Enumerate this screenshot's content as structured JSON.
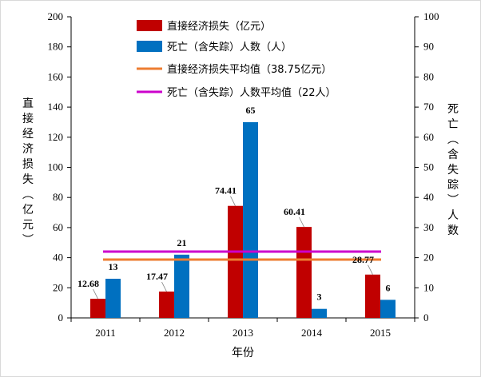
{
  "chart_data": {
    "type": "bar",
    "categories": [
      "2011",
      "2012",
      "2013",
      "2014",
      "2015"
    ],
    "xlabel": "年份",
    "ylabel_left": "直接经济损失（亿元）",
    "ylabel_right": "死亡（含失踪）人数",
    "ylim_left": [
      0,
      200
    ],
    "yticks_left": [
      "0",
      "20",
      "40",
      "60",
      "80",
      "100",
      "120",
      "140",
      "160",
      "180",
      "200"
    ],
    "ylim_right": [
      0,
      100
    ],
    "yticks_right": [
      "0",
      "10",
      "20",
      "30",
      "40",
      "50",
      "60",
      "70",
      "80",
      "90",
      "100"
    ],
    "grid": false,
    "legend_position": "top-center",
    "series": [
      {
        "name": "直接经济损失（亿元）",
        "axis": "left",
        "color": "#C00000",
        "values": [
          12.68,
          17.47,
          74.41,
          60.41,
          28.77
        ],
        "labels": [
          "12.68",
          "17.47",
          "74.41",
          "60.41",
          "28.77"
        ]
      },
      {
        "name": "死亡（含失踪）人数（人）",
        "axis": "right",
        "color": "#0070C0",
        "values": [
          13,
          21,
          65,
          3,
          6
        ],
        "labels": [
          "13",
          "21",
          "65",
          "3",
          "6"
        ]
      }
    ],
    "reference_lines": [
      {
        "name": "直接经济损失平均值（38.75亿元）",
        "axis": "left",
        "value": 38.75,
        "color": "#ED7D31"
      },
      {
        "name": "死亡（含失踪）人数平均值（22人）",
        "axis": "right",
        "value": 22,
        "color": "#CC00CC"
      }
    ]
  }
}
